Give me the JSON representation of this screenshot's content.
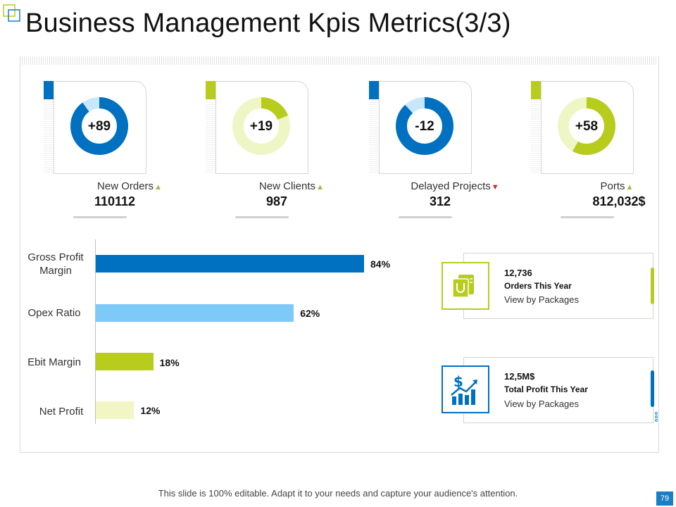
{
  "title": "Business Management Kpis Metrics(3/3)",
  "colors": {
    "blue": "#0070c0",
    "light_blue": "#8ecdf5",
    "pale_blue": "#c8e7fa",
    "green": "#b8cc1e",
    "pale_green": "#eff6c6",
    "up": "#8fbf3a",
    "down": "#e31e24"
  },
  "kpis": [
    {
      "name": "New Orders",
      "badge": "+89",
      "value": "110112",
      "trend": "up",
      "fill": 0.9,
      "color": "#0070c0",
      "track": "#c8e7fa"
    },
    {
      "name": "New Clients",
      "badge": "+19",
      "value": "987",
      "trend": "up",
      "fill": 0.19,
      "color": "#b8cc1e",
      "track": "#eff6c6"
    },
    {
      "name": "Delayed Projects",
      "badge": "-12",
      "value": "312",
      "trend": "down",
      "fill": 0.88,
      "color": "#0070c0",
      "track": "#c8e7fa"
    },
    {
      "name": "Ports",
      "badge": "+58",
      "value": "812,032$",
      "trend": "up",
      "fill": 0.58,
      "color": "#b8cc1e",
      "track": "#eff6c6"
    }
  ],
  "bars": [
    {
      "label": "Gross Profit Margin",
      "value": 84,
      "display": "84%",
      "color": "#0070c0"
    },
    {
      "label": "Opex Ratio",
      "value": 62,
      "display": "62%",
      "color": "#7dc9f7"
    },
    {
      "label": "Ebit Margin",
      "value": 18,
      "display": "18%",
      "color": "#b8cc1e"
    },
    {
      "label": "Net Profit",
      "value": 12,
      "display": "12%",
      "color": "#f1f6c4"
    }
  ],
  "info_cards": [
    {
      "number": "12,736",
      "title": "Orders This Year",
      "link": "View by Packages",
      "icon": "shopping-bag-icon",
      "color": "#b8cc1e"
    },
    {
      "number": "12,5M$",
      "title": "Total Profit This Year",
      "link": "View by Packages",
      "icon": "profit-chart-icon",
      "color": "#0070c0"
    }
  ],
  "footer": "This slide is 100% editable. Adapt it to your needs and capture your audience's attention.",
  "page_number": "79"
}
